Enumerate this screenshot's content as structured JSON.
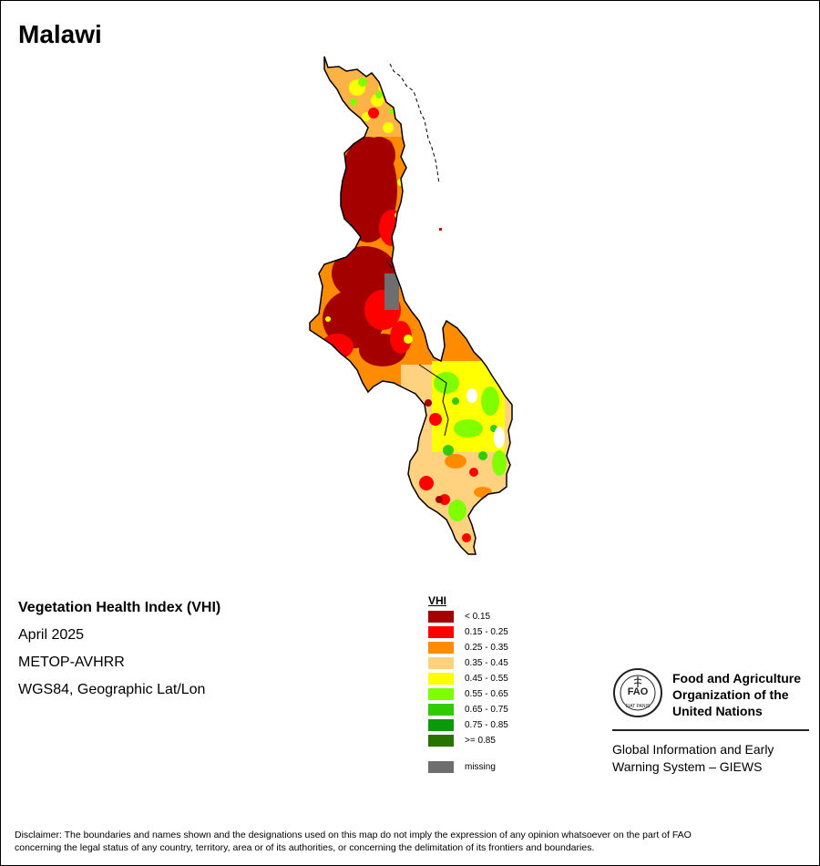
{
  "map": {
    "title": "Malawi",
    "product": "Vegetation Health Index (VHI)",
    "period": "April 2025",
    "sensor": "METOP-AVHRR",
    "projection": "WGS84, Geographic Lat/Lon"
  },
  "legend": {
    "title": "VHI",
    "items": [
      {
        "label": "< 0.15",
        "color": "#a50000"
      },
      {
        "label": "0.15 - 0.25",
        "color": "#ff0000"
      },
      {
        "label": "0.25 - 0.35",
        "color": "#ff8c00"
      },
      {
        "label": "0.35 - 0.45",
        "color": "#ffd27f"
      },
      {
        "label": "0.45 - 0.55",
        "color": "#ffff00"
      },
      {
        "label": "0.55 - 0.65",
        "color": "#7fff00"
      },
      {
        "label": "0.65 - 0.75",
        "color": "#2ecc00"
      },
      {
        "label": "0.75 - 0.85",
        "color": "#0a9a0a"
      },
      {
        "label": ">= 0.85",
        "color": "#267300"
      }
    ],
    "missing": {
      "label": "missing",
      "color": "#6e6e6e"
    }
  },
  "fao": {
    "name_line1": "Food and Agriculture",
    "name_line2": "Organization of the",
    "name_line3": "United Nations",
    "logo_text": "FAO",
    "logo_motto": "FIAT PANIS",
    "giews_line1": "Global Information and Early",
    "giews_line2": "Warning System – GIEWS"
  },
  "disclaimer": {
    "line1": "Disclaimer: The boundaries and names shown and the designations used on this map do not imply the expression of any opinion whatsoever on the part of FAO",
    "line2": "concerning the legal status of any country, territory, area or of its authorities, or concerning the delimitation of its frontiers and boundaries."
  }
}
